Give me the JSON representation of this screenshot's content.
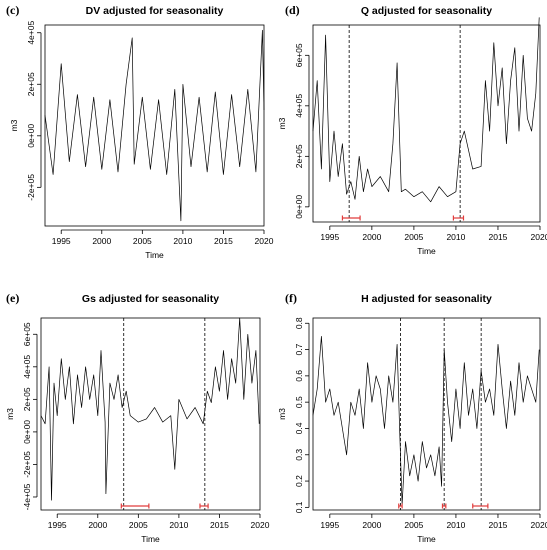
{
  "chart_data": [
    {
      "type": "line",
      "panel_label": "(c)",
      "title": "DV adjusted for seasonality",
      "xlabel": "Time",
      "ylabel": "m3",
      "xlim": [
        1993,
        2020
      ],
      "ylim": [
        -350000,
        430000
      ],
      "x_ticks": [
        1995,
        2000,
        2005,
        2010,
        2015,
        2020
      ],
      "y_ticks": [
        -200000,
        0,
        200000,
        400000
      ],
      "y_tick_labels": [
        "-2e+05",
        "0e+00",
        "2e+05",
        "4e+05"
      ],
      "series": [
        {
          "x": [
            1993,
            1994,
            1995,
            1996,
            1997,
            1998,
            1999,
            2000,
            2001,
            2002,
            2003,
            2003.75,
            2004,
            2005,
            2006,
            2007,
            2008,
            2009,
            2009.75,
            2010,
            2011,
            2012,
            2013,
            2014,
            2015,
            2016,
            2017,
            2018,
            2019,
            2019.8,
            2020
          ],
          "values": [
            80000,
            -150000,
            280000,
            -100000,
            160000,
            -120000,
            150000,
            -130000,
            140000,
            -140000,
            200000,
            380000,
            -110000,
            150000,
            -130000,
            140000,
            -150000,
            180000,
            -330000,
            200000,
            -120000,
            150000,
            -140000,
            170000,
            -150000,
            160000,
            -120000,
            180000,
            -140000,
            410000,
            100000
          ]
        }
      ],
      "breakpoints": [],
      "intervals": []
    },
    {
      "type": "line",
      "panel_label": "(d)",
      "title": "Q adjusted for seasonality",
      "xlabel": "Time",
      "ylabel": "m3",
      "xlim": [
        1993,
        2020
      ],
      "ylim": [
        -60000,
        720000
      ],
      "x_ticks": [
        1995,
        2000,
        2005,
        2010,
        2015,
        2020
      ],
      "y_ticks": [
        0,
        200000,
        400000,
        600000
      ],
      "y_tick_labels": [
        "0e+00",
        "2e+05",
        "4e+05",
        "6e+05"
      ],
      "series": [
        {
          "x": [
            1993,
            1993.5,
            1994,
            1994.5,
            1995,
            1995.5,
            1996,
            1996.5,
            1997,
            1997.5,
            1998,
            1998.5,
            1999,
            1999.5,
            2000,
            2001,
            2002,
            2002.5,
            2003,
            2003.5,
            2004,
            2005,
            2006,
            2007,
            2008,
            2009,
            2010,
            2010.5,
            2011,
            2012,
            2013,
            2013.5,
            2014,
            2014.5,
            2015,
            2015.5,
            2016,
            2016.5,
            2017,
            2017.5,
            2018,
            2018.5,
            2019,
            2019.5,
            2019.9
          ],
          "values": [
            300000,
            500000,
            150000,
            680000,
            100000,
            300000,
            120000,
            250000,
            50000,
            100000,
            30000,
            200000,
            60000,
            150000,
            80000,
            120000,
            60000,
            250000,
            570000,
            60000,
            70000,
            40000,
            60000,
            20000,
            80000,
            40000,
            60000,
            250000,
            300000,
            150000,
            160000,
            500000,
            300000,
            650000,
            400000,
            550000,
            250000,
            500000,
            630000,
            300000,
            600000,
            350000,
            300000,
            450000,
            750000
          ]
        }
      ],
      "breakpoints": [
        1997.3,
        2010.5
      ],
      "intervals": [
        [
          1996.5,
          1998.6
        ],
        [
          2009.7,
          2010.9
        ]
      ]
    },
    {
      "type": "line",
      "panel_label": "(e)",
      "title": "Gs adjusted for seasonality",
      "xlabel": "Time",
      "ylabel": "m3",
      "xlim": [
        1993,
        2020
      ],
      "ylim": [
        -480000,
        700000
      ],
      "x_ticks": [
        1995,
        2000,
        2005,
        2010,
        2015,
        2020
      ],
      "y_ticks": [
        -400000,
        -200000,
        0,
        200000,
        400000,
        600000
      ],
      "y_tick_labels": [
        "-4e+05",
        "-2e+05",
        "0e+00",
        "2e+05",
        "4e+05",
        "6e+05"
      ],
      "series": [
        {
          "x": [
            1993,
            1993.5,
            1994,
            1994.3,
            1994.6,
            1995,
            1995.5,
            1996,
            1996.5,
            1997,
            1997.5,
            1998,
            1998.5,
            1999,
            1999.5,
            2000,
            2000.4,
            2000.9,
            2001,
            2001.5,
            2002,
            2002.5,
            2003,
            2003.5,
            2004,
            2005,
            2006,
            2007,
            2008,
            2009,
            2009.5,
            2010,
            2011,
            2012,
            2013,
            2013.5,
            2014,
            2014.5,
            2015,
            2015.5,
            2016,
            2016.5,
            2017,
            2017.5,
            2018,
            2018.5,
            2019,
            2019.5,
            2019.9
          ],
          "values": [
            100000,
            50000,
            400000,
            -420000,
            300000,
            100000,
            450000,
            200000,
            400000,
            50000,
            350000,
            150000,
            400000,
            200000,
            350000,
            100000,
            500000,
            60000,
            -380000,
            300000,
            200000,
            350000,
            150000,
            250000,
            100000,
            60000,
            80000,
            150000,
            60000,
            100000,
            -230000,
            200000,
            80000,
            150000,
            50000,
            250000,
            180000,
            400000,
            250000,
            500000,
            200000,
            450000,
            300000,
            700000,
            200000,
            600000,
            300000,
            500000,
            50000
          ]
        }
      ],
      "breakpoints": [
        2003.2,
        2013.2
      ],
      "intervals": [
        [
          2002.9,
          2006.3
        ],
        [
          2012.6,
          2013.6
        ]
      ]
    },
    {
      "type": "line",
      "panel_label": "(f)",
      "title": "H adjusted for seasonality",
      "xlabel": "Time",
      "ylabel": "m3",
      "xlim": [
        1993,
        2020
      ],
      "ylim": [
        0.09,
        0.82
      ],
      "x_ticks": [
        1995,
        2000,
        2005,
        2010,
        2015,
        2020
      ],
      "y_ticks": [
        0.1,
        0.2,
        0.3,
        0.4,
        0.5,
        0.6,
        0.7,
        0.8
      ],
      "y_tick_labels": [
        "0.1",
        "0.2",
        "0.3",
        "0.4",
        "0.5",
        "0.6",
        "0.7",
        "0.8"
      ],
      "series": [
        {
          "x": [
            1993,
            1993.5,
            1994,
            1994.5,
            1995,
            1995.5,
            1996,
            1996.5,
            1997,
            1997.5,
            1998,
            1998.5,
            1999,
            1999.5,
            2000,
            2000.5,
            2001,
            2001.5,
            2002,
            2002.5,
            2003,
            2003.3,
            2003.6,
            2004,
            2004.5,
            2005,
            2005.5,
            2006,
            2006.5,
            2007,
            2007.5,
            2008,
            2008.3,
            2008.6,
            2009,
            2009.5,
            2010,
            2010.5,
            2011,
            2011.5,
            2012,
            2012.5,
            2013,
            2013.5,
            2014,
            2014.5,
            2015,
            2015.5,
            2016,
            2016.5,
            2017,
            2017.5,
            2018,
            2018.5,
            2019,
            2019.5,
            2019.9
          ],
          "values": [
            0.45,
            0.55,
            0.75,
            0.5,
            0.55,
            0.45,
            0.5,
            0.4,
            0.3,
            0.5,
            0.45,
            0.55,
            0.4,
            0.65,
            0.5,
            0.6,
            0.55,
            0.4,
            0.6,
            0.5,
            0.72,
            0.4,
            0.11,
            0.35,
            0.22,
            0.3,
            0.2,
            0.35,
            0.25,
            0.3,
            0.22,
            0.33,
            0.18,
            0.7,
            0.5,
            0.35,
            0.55,
            0.4,
            0.65,
            0.45,
            0.55,
            0.4,
            0.62,
            0.5,
            0.55,
            0.45,
            0.72,
            0.55,
            0.4,
            0.58,
            0.45,
            0.65,
            0.5,
            0.6,
            0.55,
            0.5,
            0.7
          ]
        }
      ],
      "breakpoints": [
        2003.4,
        2008.6,
        2013.0
      ],
      "intervals": [
        [
          2003.2,
          2003.6
        ],
        [
          2008.4,
          2008.8
        ],
        [
          2012.0,
          2013.8
        ]
      ]
    }
  ]
}
